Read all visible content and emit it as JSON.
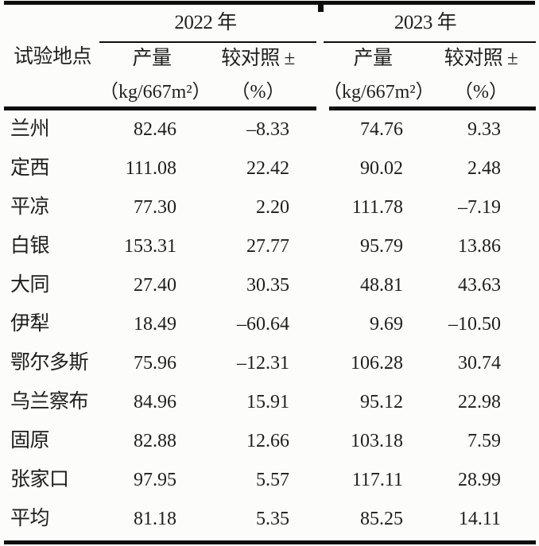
{
  "table": {
    "header": {
      "location_label": "试验地点",
      "year1": "2022 年",
      "year2": "2023 年",
      "yield_label": "产量",
      "yield_unit": "（kg/667m²）",
      "vs_control_label": "较对照 ±",
      "vs_control_unit": "（%）"
    },
    "rows": [
      {
        "loc": "兰州",
        "y1": "82.46",
        "d1": "–8.33",
        "y2": "74.76",
        "d2": "9.33"
      },
      {
        "loc": "定西",
        "y1": "111.08",
        "d1": "22.42",
        "y2": "90.02",
        "d2": "2.48"
      },
      {
        "loc": "平凉",
        "y1": "77.30",
        "d1": "2.20",
        "y2": "111.78",
        "d2": "–7.19"
      },
      {
        "loc": "白银",
        "y1": "153.31",
        "d1": "27.77",
        "y2": "95.79",
        "d2": "13.86"
      },
      {
        "loc": "大同",
        "y1": "27.40",
        "d1": "30.35",
        "y2": "48.81",
        "d2": "43.63"
      },
      {
        "loc": "伊犁",
        "y1": "18.49",
        "d1": "–60.64",
        "y2": "9.69",
        "d2": "–10.50"
      },
      {
        "loc": "鄂尔多斯",
        "y1": "75.96",
        "d1": "–12.31",
        "y2": "106.28",
        "d2": "30.74"
      },
      {
        "loc": "乌兰察布",
        "y1": "84.96",
        "d1": "15.91",
        "y2": "95.12",
        "d2": "22.98"
      },
      {
        "loc": "固原",
        "y1": "82.88",
        "d1": "12.66",
        "y2": "103.18",
        "d2": "7.59"
      },
      {
        "loc": "张家口",
        "y1": "97.95",
        "d1": "5.57",
        "y2": "117.11",
        "d2": "28.99"
      },
      {
        "loc": "平均",
        "y1": "81.18",
        "d1": "5.35",
        "y2": "85.25",
        "d2": "14.11"
      }
    ]
  }
}
